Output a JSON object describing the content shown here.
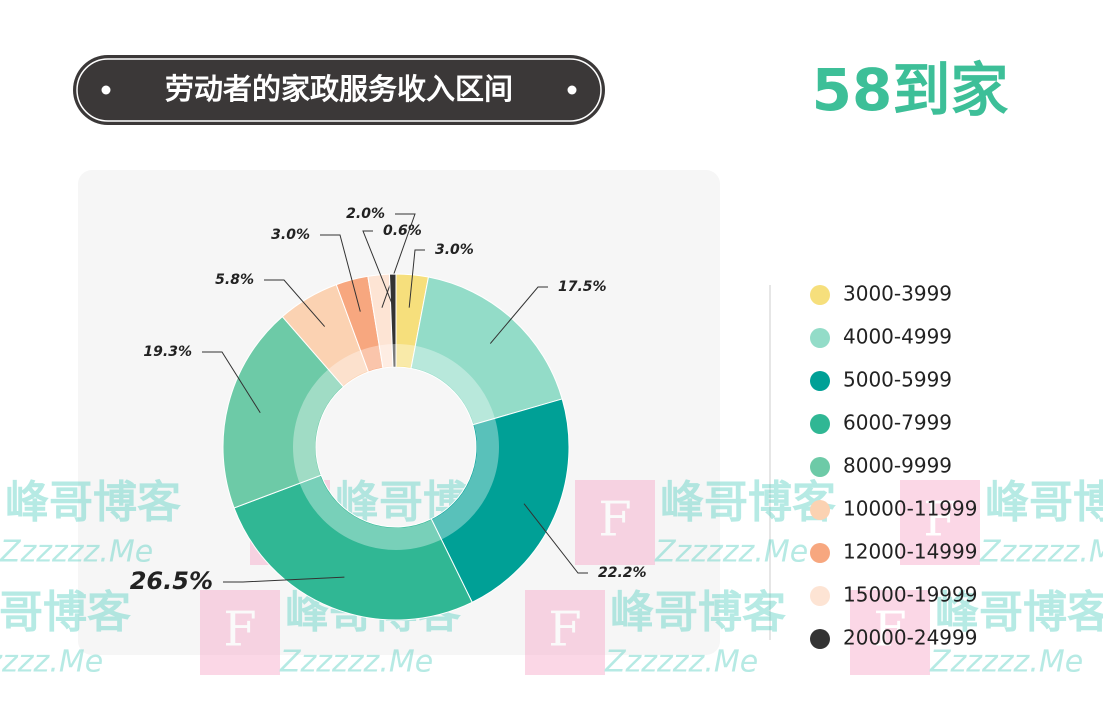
{
  "chart_data": {
    "type": "donut",
    "title": "劳动者的家政服务收入区间",
    "brand": "58到家",
    "categories": [
      "3000-3999",
      "4000-4999",
      "5000-5999",
      "6000-7999",
      "8000-9999",
      "10000-11999",
      "12000-14999",
      "15000-19999",
      "20000-24999"
    ],
    "values": [
      3.0,
      17.5,
      22.2,
      26.5,
      19.3,
      5.8,
      3.0,
      2.0,
      0.6
    ],
    "value_labels": [
      "3.0%",
      "17.5%",
      "22.2%",
      "26.5%",
      "19.3%",
      "5.8%",
      "3.0%",
      "2.0%",
      "0.6%"
    ],
    "colors": [
      "#f6df7c",
      "#93dcc8",
      "#00a096",
      "#30b794",
      "#6dcaa7",
      "#fbd2b2",
      "#f7a77f",
      "#fde4d4",
      "#333333"
    ],
    "watermark": {
      "text": "峰哥博客",
      "url": "Zzzzzz.Me",
      "letter": "F"
    }
  }
}
